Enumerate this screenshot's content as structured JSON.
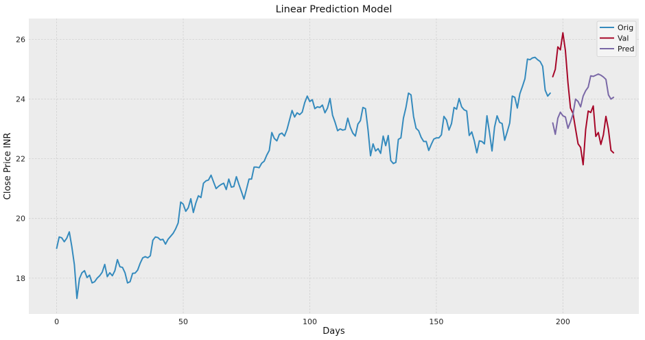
{
  "chart_data": {
    "type": "line",
    "title": "Linear Prediction Model",
    "xlabel": "Days",
    "ylabel": "Close Price INR",
    "xlim": [
      -11,
      230
    ],
    "ylim": [
      16.8,
      26.7
    ],
    "xticks": [
      0,
      50,
      100,
      150,
      200
    ],
    "yticks": [
      18,
      20,
      22,
      24,
      26
    ],
    "grid": true,
    "legend_position": "top-right",
    "background": "#ececec",
    "series": [
      {
        "name": "Orig",
        "color": "#348abd",
        "x_start": 0,
        "values": [
          19.0,
          19.38,
          19.35,
          19.22,
          19.34,
          19.55,
          19.05,
          18.45,
          17.32,
          17.98,
          18.18,
          18.25,
          18.02,
          18.1,
          17.84,
          17.88,
          18.0,
          18.08,
          18.2,
          18.46,
          18.05,
          18.18,
          18.08,
          18.25,
          18.62,
          18.38,
          18.36,
          18.18,
          17.84,
          17.88,
          18.16,
          18.17,
          18.27,
          18.5,
          18.68,
          18.72,
          18.68,
          18.75,
          19.27,
          19.38,
          19.36,
          19.28,
          19.3,
          19.14,
          19.3,
          19.4,
          19.5,
          19.65,
          19.85,
          20.55,
          20.48,
          20.24,
          20.36,
          20.66,
          20.2,
          20.52,
          20.76,
          20.7,
          21.18,
          21.26,
          21.29,
          21.45,
          21.22,
          21.0,
          21.08,
          21.14,
          21.18,
          20.97,
          21.32,
          21.05,
          21.07,
          21.4,
          21.14,
          20.9,
          20.65,
          20.98,
          21.32,
          21.32,
          21.72,
          21.72,
          21.7,
          21.85,
          21.92,
          22.12,
          22.28,
          22.88,
          22.68,
          22.6,
          22.82,
          22.86,
          22.76,
          22.98,
          23.3,
          23.62,
          23.4,
          23.54,
          23.48,
          23.56,
          23.88,
          24.1,
          23.92,
          23.98,
          23.68,
          23.74,
          23.72,
          23.8,
          23.54,
          23.7,
          24.02,
          23.46,
          23.22,
          22.94,
          23.0,
          22.96,
          22.98,
          23.36,
          23.06,
          22.86,
          22.76,
          23.16,
          23.28,
          23.72,
          23.68,
          22.98,
          22.1,
          22.5,
          22.26,
          22.34,
          22.18,
          22.76,
          22.44,
          22.78,
          21.94,
          21.84,
          21.88,
          22.65,
          22.7,
          23.36,
          23.72,
          24.2,
          24.14,
          23.42,
          23.02,
          22.94,
          22.72,
          22.58,
          22.58,
          22.28,
          22.48,
          22.66,
          22.7,
          22.7,
          22.8,
          23.42,
          23.3,
          22.96,
          23.18,
          23.72,
          23.66,
          24.02,
          23.74,
          23.64,
          23.6,
          22.78,
          22.9,
          22.6,
          22.2,
          22.6,
          22.58,
          22.5,
          23.44,
          22.88,
          22.26,
          23.06,
          23.44,
          23.22,
          23.18,
          22.62,
          22.9,
          23.2,
          24.1,
          24.06,
          23.7,
          24.18,
          24.42,
          24.68,
          25.34,
          25.32,
          25.38,
          25.4,
          25.32,
          25.26,
          25.1,
          24.3,
          24.1,
          24.2
        ]
      },
      {
        "name": "Val",
        "color": "#a60628",
        "x_start": 196,
        "values": [
          24.75,
          25.0,
          25.75,
          25.65,
          26.22,
          25.62,
          24.55,
          23.7,
          23.52,
          23.0,
          22.5,
          22.38,
          21.8,
          22.98,
          23.6,
          23.55,
          23.77,
          22.75,
          22.88,
          22.48,
          22.8,
          23.42,
          22.98,
          22.28,
          22.2
        ]
      },
      {
        "name": "Pred",
        "color": "#7a68a6",
        "x_start": 196,
        "values": [
          23.2,
          22.82,
          23.36,
          23.56,
          23.44,
          23.4,
          23.02,
          23.24,
          23.5,
          24.0,
          23.92,
          23.74,
          24.1,
          24.28,
          24.4,
          24.78,
          24.76,
          24.8,
          24.84,
          24.8,
          24.74,
          24.66,
          24.14,
          24.0,
          24.06
        ]
      }
    ]
  }
}
